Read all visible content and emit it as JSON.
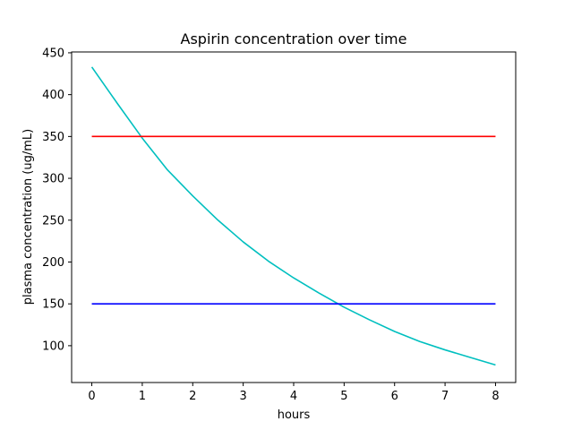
{
  "chart_data": {
    "type": "line",
    "title": "Aspirin concentration over time",
    "xlabel": "hours",
    "ylabel": "plasma concentration (ug/mL)",
    "xlim": [
      -0.4,
      8.4
    ],
    "ylim": [
      56,
      451
    ],
    "xticks": [
      0,
      1,
      2,
      3,
      4,
      5,
      6,
      7,
      8
    ],
    "yticks": [
      100,
      150,
      200,
      250,
      300,
      350,
      400,
      450
    ],
    "grid": false,
    "series": [
      {
        "color": "#00bfbf",
        "x": [
          0,
          0.5,
          1,
          1.5,
          2,
          2.5,
          3,
          3.5,
          4,
          4.5,
          5,
          5.5,
          6,
          6.5,
          7,
          7.5,
          8
        ],
        "y": [
          433,
          390,
          348,
          310,
          279,
          250,
          224,
          201,
          181,
          163,
          146,
          131,
          117,
          105,
          95,
          86,
          77
        ]
      },
      {
        "color": "#ff0000",
        "x": [
          0,
          8
        ],
        "y": [
          350,
          350
        ]
      },
      {
        "color": "#0000ff",
        "x": [
          0,
          8
        ],
        "y": [
          150,
          150
        ]
      }
    ]
  }
}
